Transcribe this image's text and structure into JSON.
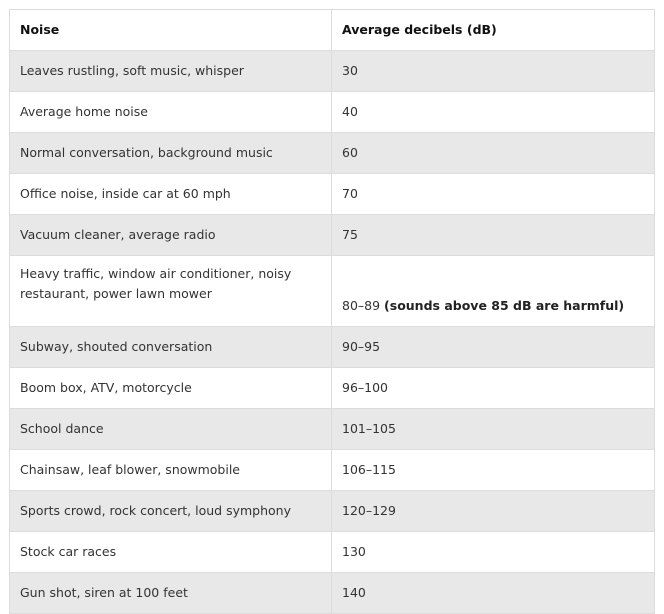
{
  "table": {
    "headers": [
      "Noise",
      "Average decibels (dB)"
    ],
    "rows": [
      {
        "noise": "Leaves rustling, soft music, whisper",
        "db": "30",
        "note": ""
      },
      {
        "noise": "Average home noise",
        "db": "40",
        "note": ""
      },
      {
        "noise": "Normal conversation, background music",
        "db": "60",
        "note": ""
      },
      {
        "noise": "Office noise, inside car at 60 mph",
        "db": "70",
        "note": ""
      },
      {
        "noise": "Vacuum cleaner, average radio",
        "db": "75",
        "note": ""
      },
      {
        "noise": "Heavy traffic, window air conditioner, noisy restaurant, power lawn mower",
        "db": "80–89",
        "note": "(sounds above 85 dB are harmful)"
      },
      {
        "noise": "Subway, shouted conversation",
        "db": "90–95",
        "note": ""
      },
      {
        "noise": "Boom box, ATV, motorcycle",
        "db": "96–100",
        "note": ""
      },
      {
        "noise": "School dance",
        "db": "101–105",
        "note": ""
      },
      {
        "noise": "Chainsaw, leaf blower, snowmobile",
        "db": "106–115",
        "note": ""
      },
      {
        "noise": "Sports crowd, rock concert, loud symphony",
        "db": "120–129",
        "note": ""
      },
      {
        "noise": "Stock car races",
        "db": "130",
        "note": ""
      },
      {
        "noise": "Gun shot, siren at 100 feet",
        "db": "140",
        "note": ""
      }
    ]
  },
  "colors": {
    "shaded_row": "#e8e8e8",
    "plain_row": "#ffffff",
    "border": "#dcdcdc",
    "text": "#333333"
  }
}
